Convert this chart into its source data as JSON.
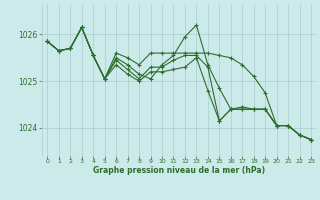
{
  "bg_color": "#cceaea",
  "plot_bg_color": "#cceaea",
  "grid_color": "#aacccc",
  "line_color": "#2d6e2d",
  "marker_color": "#2d6e2d",
  "xlabel": "Graphe pression niveau de la mer (hPa)",
  "xlabel_color": "#2d6e2d",
  "xtick_color": "#2d6e2d",
  "ytick_color": "#2d6e2d",
  "ylim": [
    1023.4,
    1026.65
  ],
  "yticks": [
    1024,
    1025,
    1026
  ],
  "xlim": [
    -0.5,
    23.5
  ],
  "xticks": [
    0,
    1,
    2,
    3,
    4,
    5,
    6,
    7,
    8,
    9,
    10,
    11,
    12,
    13,
    14,
    15,
    16,
    17,
    18,
    19,
    20,
    21,
    22,
    23
  ],
  "series": [
    [
      1025.85,
      1025.65,
      1025.7,
      1026.15,
      1025.55,
      1025.05,
      1025.6,
      1025.5,
      1025.35,
      1025.6,
      1025.6,
      1025.6,
      1025.6,
      1025.6,
      1025.6,
      1025.55,
      1025.5,
      1025.35,
      1025.1,
      1024.75,
      1024.05,
      1024.05,
      1023.85,
      1023.75
    ],
    [
      1025.85,
      1025.65,
      1025.7,
      1026.15,
      1025.55,
      1025.05,
      1025.5,
      1025.35,
      1025.15,
      1025.05,
      1025.35,
      1025.55,
      1025.95,
      1026.2,
      1025.35,
      1024.85,
      1024.4,
      1024.45,
      1024.4,
      1024.4,
      1024.05,
      1024.05,
      1023.85,
      1023.75
    ],
    [
      1025.85,
      1025.65,
      1025.7,
      1026.15,
      1025.55,
      1025.05,
      1025.45,
      1025.25,
      1025.05,
      1025.3,
      1025.3,
      1025.45,
      1025.55,
      1025.55,
      1025.3,
      1024.15,
      1024.4,
      1024.4,
      1024.4,
      1024.4,
      1024.05,
      1024.05,
      1023.85,
      1023.75
    ],
    [
      1025.85,
      1025.65,
      1025.7,
      1026.15,
      1025.55,
      1025.05,
      1025.35,
      1025.15,
      1025.0,
      1025.2,
      1025.2,
      1025.25,
      1025.3,
      1025.5,
      1024.8,
      1024.15,
      1024.4,
      1024.4,
      1024.4,
      1024.4,
      1024.05,
      1024.05,
      1023.85,
      1023.75
    ]
  ]
}
